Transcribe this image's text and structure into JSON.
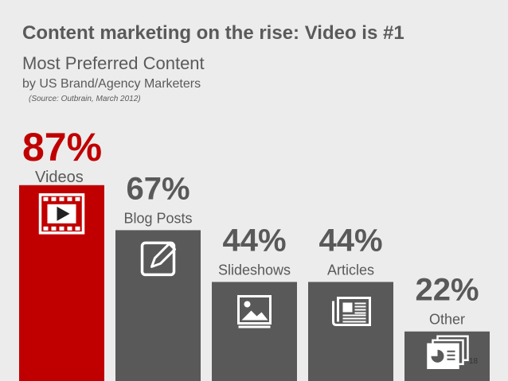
{
  "title": "Content marketing on the rise: Video is #1",
  "subtitle": "Most Preferred Content",
  "subtitle2": "by US Brand/Agency Marketers",
  "source": "(Source: Outbrain, March 2012)",
  "page_number": "18",
  "colors": {
    "highlight": "#c00000",
    "bar": "#595959",
    "text": "#595959",
    "background": "#ececec"
  },
  "chart_data": {
    "type": "bar",
    "categories": [
      "Videos",
      "Blog Posts",
      "Slideshows",
      "Articles",
      "Other"
    ],
    "values": [
      87,
      67,
      44,
      44,
      22
    ],
    "value_labels": [
      "87%",
      "67%",
      "44%",
      "44%",
      "22%"
    ],
    "icons": [
      "video-icon",
      "pencil-icon",
      "image-icon",
      "newspaper-icon",
      "presentation-icon"
    ],
    "highlight_index": 0,
    "unit": "%",
    "ylim": [
      0,
      100
    ],
    "grid": false,
    "legend": "none"
  }
}
